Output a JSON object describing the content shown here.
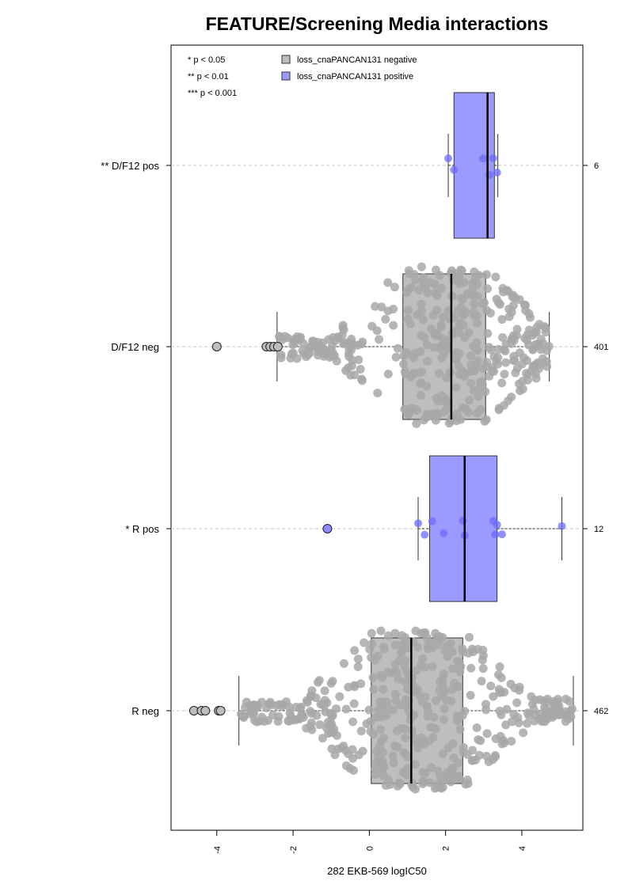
{
  "chart_data": {
    "type": "box",
    "title": "FEATURE/Screening Media interactions",
    "xlabel": "282 EKB-569 logIC50",
    "ylabel": "",
    "xlim": [
      -5.2,
      5.6
    ],
    "x_ticks": [
      -4,
      -2,
      0,
      2,
      4
    ],
    "x_tick_labels": [
      "-4",
      "-2",
      "0",
      "2",
      "4"
    ],
    "significance_legend": [
      "* p < 0.05",
      "** p < 0.01",
      "*** p < 0.001"
    ],
    "legend": [
      {
        "name": "loss_cnaPANCAN131 negative",
        "color": "#bebebe"
      },
      {
        "name": "loss_cnaPANCAN131 positive",
        "color": "#9b9bff"
      }
    ],
    "groups": [
      {
        "label": "** D/F12 pos",
        "count": "6",
        "positive": true,
        "whisker_low": 2.07,
        "q1": 2.22,
        "median": 3.1,
        "q3": 3.28,
        "whisker_high": 3.37,
        "points": [
          2.07,
          2.22,
          2.98,
          3.15,
          3.25,
          3.35
        ],
        "outliers": []
      },
      {
        "label": "D/F12 neg",
        "count": "401",
        "positive": false,
        "whisker_low": -2.42,
        "q1": 0.88,
        "median": 2.15,
        "q3": 3.05,
        "whisker_high": 4.72,
        "points_min": -2.4,
        "points_max": 4.72,
        "outliers": [
          -4.0,
          -2.7,
          -2.6,
          -2.5,
          -2.4
        ]
      },
      {
        "label": "* R pos",
        "count": "12",
        "positive": true,
        "whisker_low": 1.28,
        "q1": 1.58,
        "median": 2.5,
        "q3": 3.35,
        "whisker_high": 5.05,
        "points": [
          1.28,
          1.45,
          1.65,
          1.95,
          2.45,
          2.5,
          3.25,
          3.3,
          3.35,
          3.48,
          5.05
        ],
        "outliers": [
          -1.1
        ]
      },
      {
        "label": "R neg",
        "count": "462",
        "positive": false,
        "whisker_low": -3.42,
        "q1": 0.05,
        "median": 1.1,
        "q3": 2.45,
        "whisker_high": 5.35,
        "points_min": -3.42,
        "points_max": 5.35,
        "outliers": [
          -4.6,
          -4.4,
          -4.3,
          -3.95,
          -3.9
        ]
      }
    ]
  }
}
